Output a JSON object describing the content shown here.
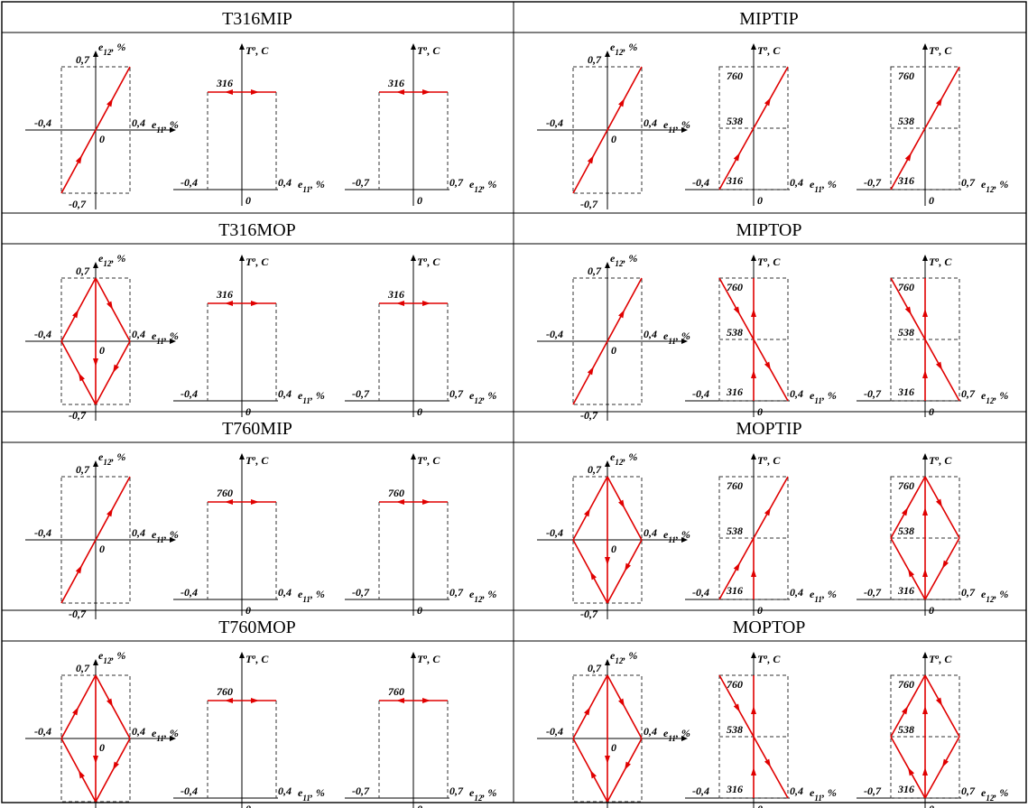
{
  "panels": [
    {
      "id": "T316MIP",
      "title": "T316MIP"
    },
    {
      "id": "MIPTIP",
      "title": "MIPTIP"
    },
    {
      "id": "T316MOP",
      "title": "T316MOP"
    },
    {
      "id": "MIPTOP",
      "title": "MIPTOP"
    },
    {
      "id": "T760MIP",
      "title": "T760MIP"
    },
    {
      "id": "MOPTIP",
      "title": "MOPTIP"
    },
    {
      "id": "T760MOP",
      "title": "T760MOP"
    },
    {
      "id": "MOPTOP",
      "title": "MOPTOP"
    }
  ],
  "labels": {
    "e11_axis": "e",
    "e11_sub": "11",
    "e12_axis": "e",
    "e12_sub": "12",
    "pct_suffix": ", %",
    "temp_axis": "T",
    "temp_sup": "o",
    "temp_unit": ", C",
    "origin": "0",
    "neg_e11": "-0,4",
    "pos_e11": "0,4",
    "neg_e12": "-0,7",
    "pos_e12": "0,7",
    "t316": "316",
    "t538": "538",
    "t760": "760"
  },
  "colors": {
    "loading_path": "#e00000",
    "grid": "#000000",
    "bounds": "#333333"
  }
}
